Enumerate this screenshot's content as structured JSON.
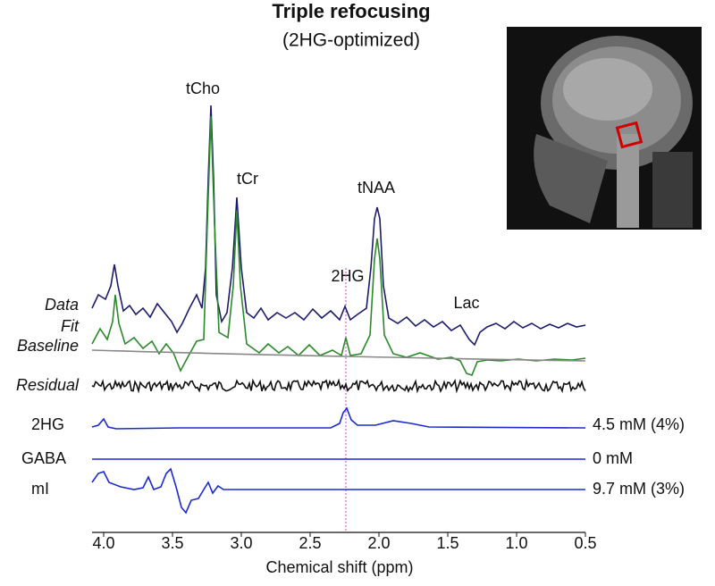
{
  "chart_data": {
    "type": "line",
    "title": "Triple refocusing",
    "subtitle": "(2HG-optimized)",
    "peak_labels": [
      "tCho",
      "tCr",
      "tNAA",
      "2HG",
      "Lac"
    ],
    "row_labels": [
      "Data",
      "Fit",
      "Baseline",
      "Residual",
      "2HG",
      "GABA",
      "mI"
    ],
    "concentrations": [
      "4.5 mM (4%)",
      "0 mM",
      "9.7 mM (3%)"
    ],
    "x_label": "Chemical shift (ppm)",
    "xlim": [
      4.1,
      0.5
    ],
    "xticks": [
      {
        "value": 4.0,
        "label": "4.0"
      },
      {
        "value": 3.5,
        "label": "3.5"
      },
      {
        "value": 3.0,
        "label": "3.0"
      },
      {
        "value": 2.5,
        "label": "2.5"
      },
      {
        "value": 2.0,
        "label": "2.0"
      },
      {
        "value": 1.5,
        "label": "1.5"
      },
      {
        "value": 1.0,
        "label": "1.0"
      },
      {
        "value": 0.5,
        "label": "0.5"
      }
    ]
  }
}
